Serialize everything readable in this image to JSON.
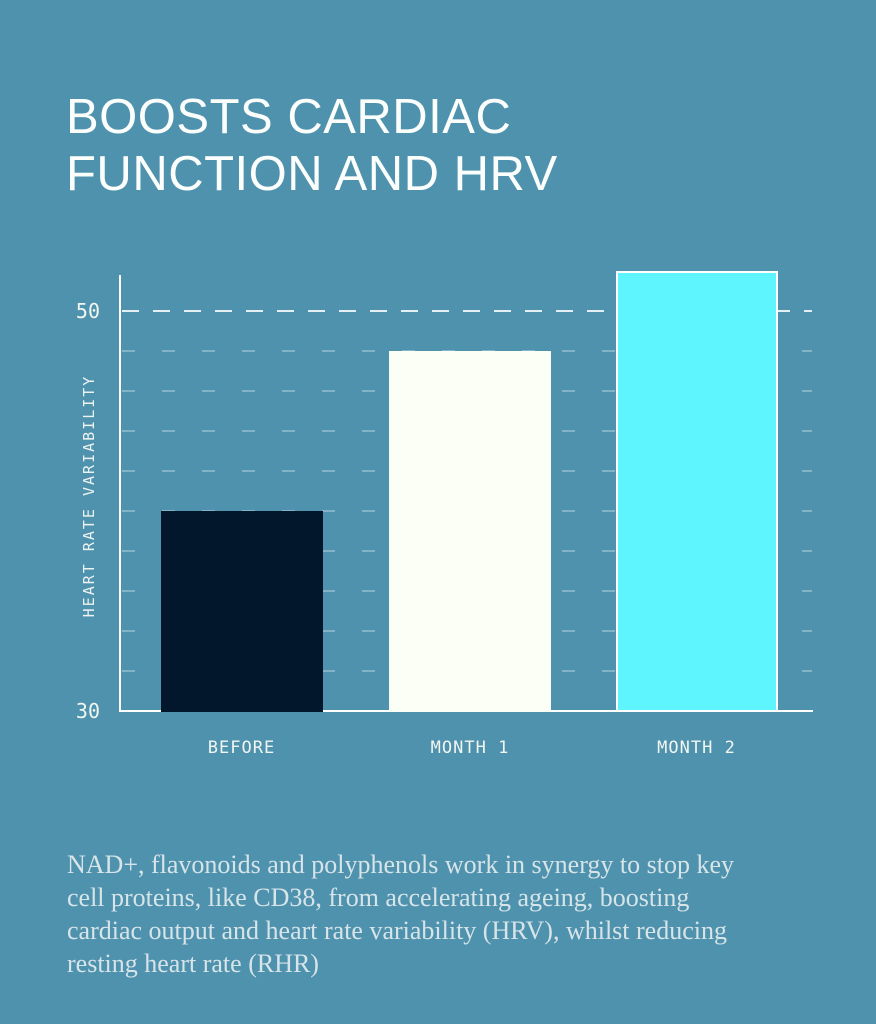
{
  "page": {
    "background_color": "#4E92AE"
  },
  "title": {
    "text": "BOOSTS CARDIAC FUNCTION AND HRV",
    "color": "#FCFEFC"
  },
  "description": "NAD+, flavonoids and polyphenols work in synergy to stop key cell proteins, like CD38, from accelerating ageing, boosting cardiac output and heart rate variability (HRV), whilst reducing resting heart rate (RHR)",
  "chart_data": {
    "type": "bar",
    "title": "",
    "xlabel": "",
    "ylabel": "HEART RATE VARIABILITY",
    "categories": [
      "BEFORE",
      "MONTH 1",
      "MONTH 2"
    ],
    "values": [
      40,
      48,
      52
    ],
    "bar_colors": [
      "#02172B",
      "#FCFFF5",
      "#5FF5FF"
    ],
    "bar_border_colors": [
      null,
      null,
      "#FFFFFF"
    ],
    "ylim": [
      30,
      51.9
    ],
    "yticks": [
      30,
      50
    ],
    "gridlines_major": [
      50
    ],
    "gridlines_minor": [
      32,
      34,
      36,
      38,
      40,
      42,
      44,
      46,
      48
    ],
    "grid_style": "dashed",
    "legend": false,
    "axis_color": "#FFFFFF"
  }
}
